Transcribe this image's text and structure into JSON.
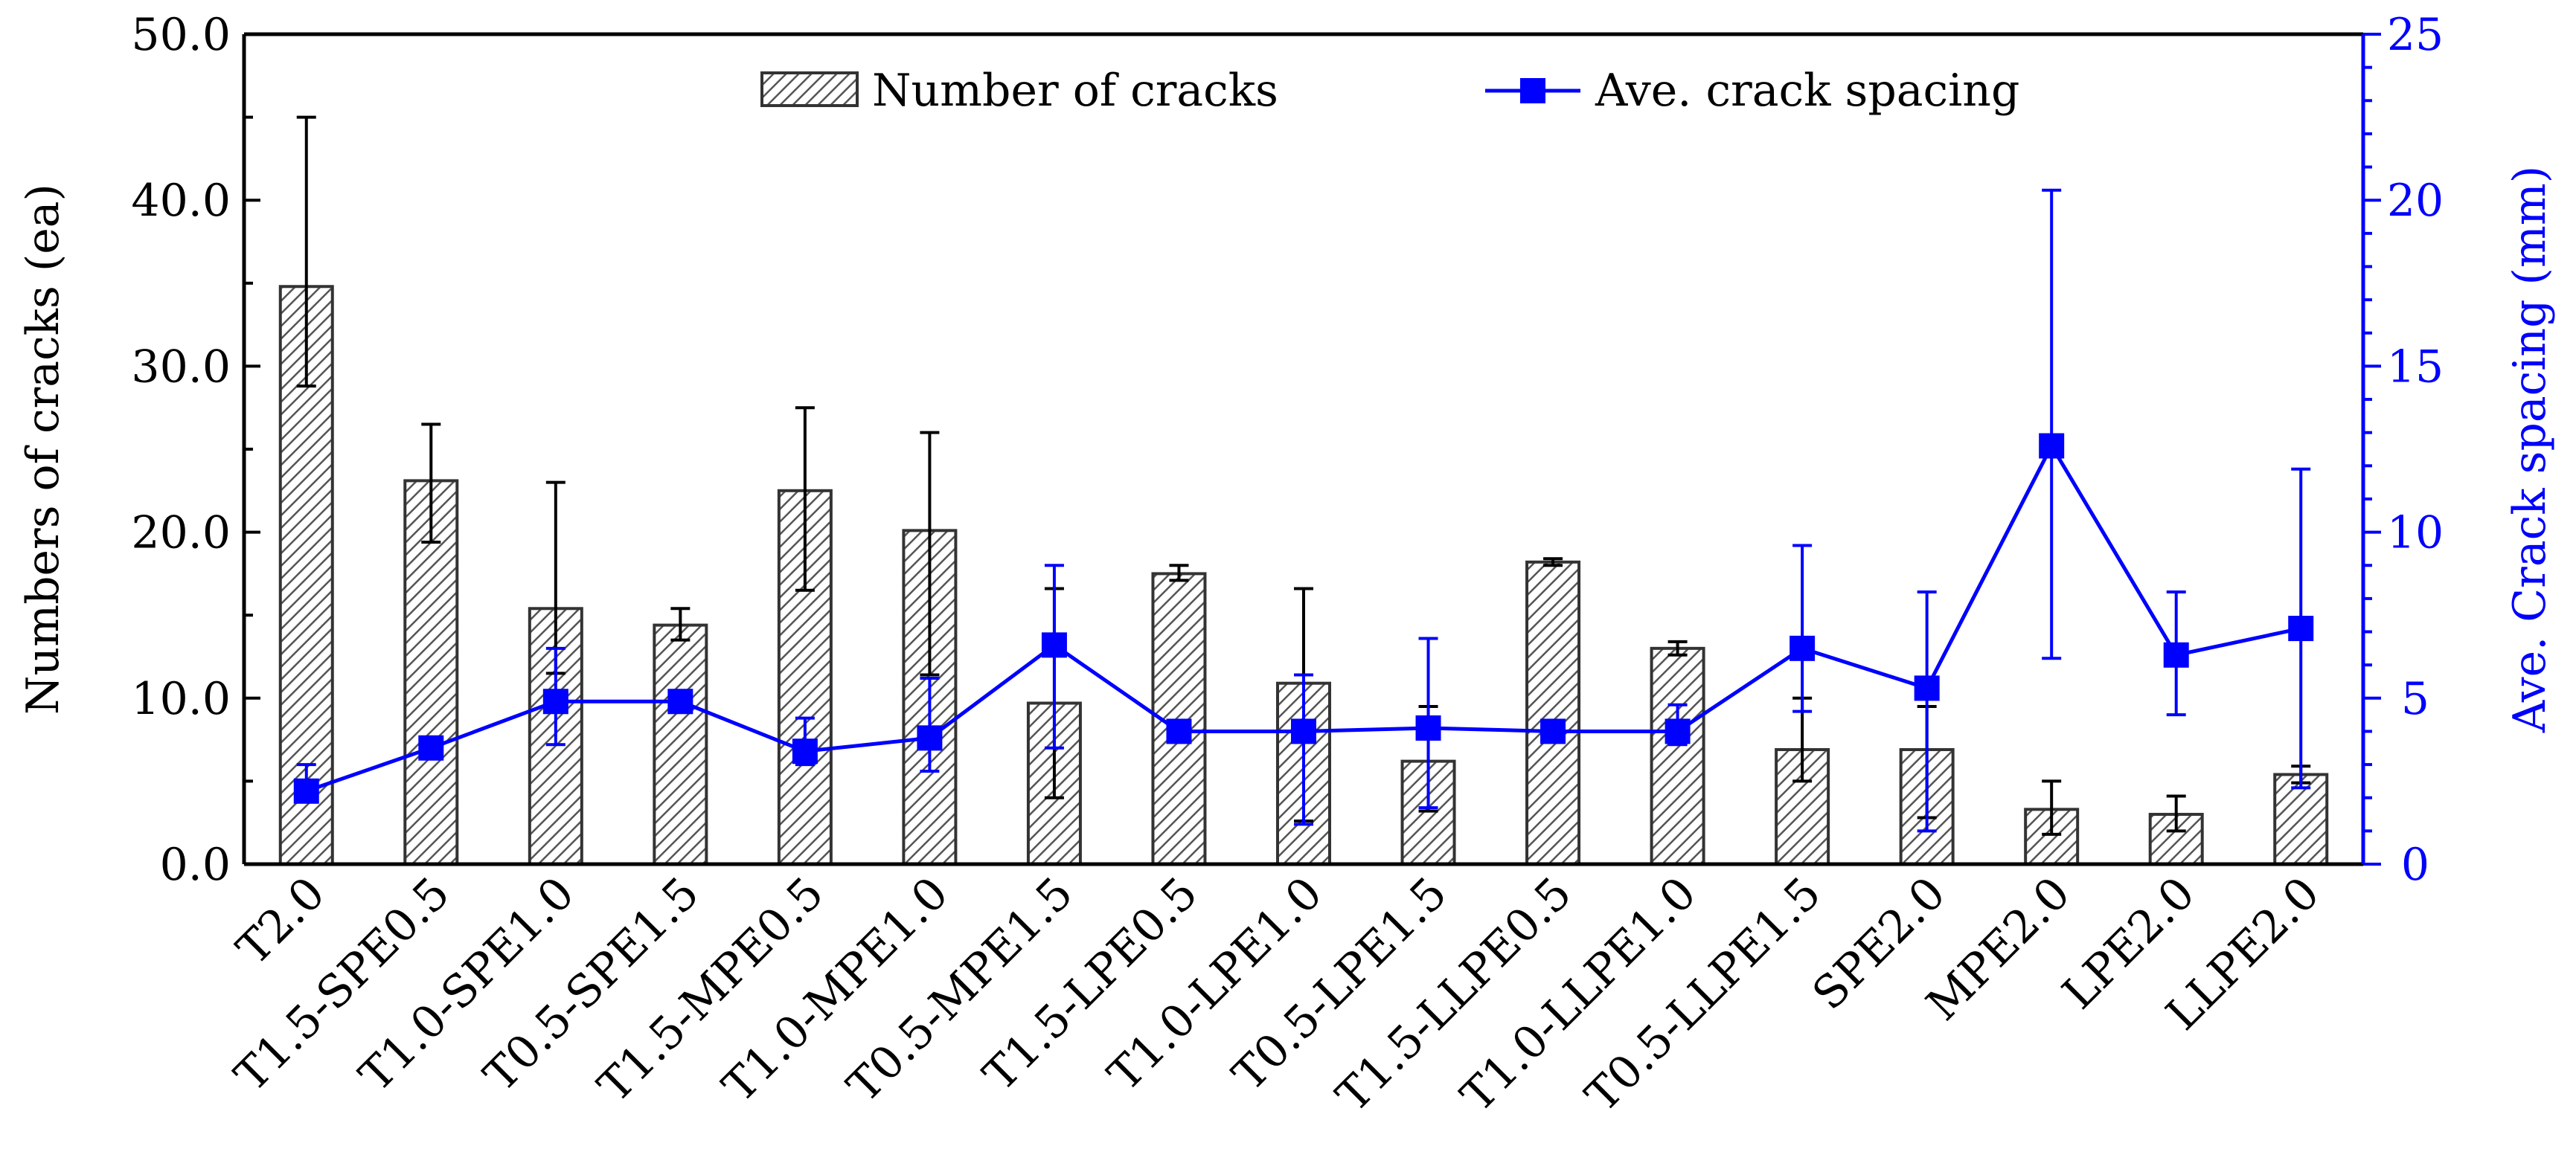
{
  "chart_data": {
    "type": "bar",
    "categories": [
      "T2.0",
      "T1.5-SPE0.5",
      "T1.0-SPE1.0",
      "T0.5-SPE1.5",
      "T1.5-MPE0.5",
      "T1.0-MPE1.0",
      "T0.5-MPE1.5",
      "T1.5-LPE0.5",
      "T1.0-LPE1.0",
      "T0.5-LPE1.5",
      "T1.5-LLPE0.5",
      "T1.0-LLPE1.0",
      "T0.5-LLPE1.5",
      "SPE2.0",
      "MPE2.0",
      "LPE2.0",
      "LLPE2.0"
    ],
    "series": [
      {
        "name": "Number of cracks",
        "type": "bar",
        "axis": "left",
        "values": [
          34.8,
          23.1,
          15.4,
          14.4,
          22.5,
          20.1,
          9.7,
          17.5,
          10.9,
          6.2,
          18.2,
          13.0,
          6.9,
          6.9,
          3.3,
          3.0,
          5.4
        ],
        "err_low": [
          28.8,
          19.4,
          11.5,
          13.5,
          16.5,
          11.4,
          4.0,
          17.1,
          2.6,
          3.2,
          18.0,
          12.6,
          5.0,
          2.8,
          1.8,
          2.0,
          4.9
        ],
        "err_high": [
          45.0,
          26.5,
          23.0,
          15.4,
          27.5,
          26.0,
          16.6,
          18.0,
          16.6,
          9.5,
          18.4,
          13.4,
          10.0,
          9.5,
          5.0,
          4.1,
          5.9
        ]
      },
      {
        "name": "Ave. crack spacing",
        "type": "line",
        "axis": "right",
        "color": "#0000ff",
        "values": [
          2.2,
          3.5,
          4.9,
          4.9,
          3.4,
          3.8,
          6.6,
          4.0,
          4.0,
          4.1,
          4.0,
          4.0,
          6.5,
          5.3,
          12.6,
          6.3,
          7.1
        ],
        "err_low": [
          2.2,
          3.5,
          3.6,
          4.9,
          3.0,
          2.8,
          3.5,
          4.0,
          1.2,
          1.7,
          4.0,
          3.6,
          4.6,
          1.0,
          6.2,
          4.5,
          2.3
        ],
        "err_high": [
          3.0,
          3.5,
          6.5,
          4.9,
          4.4,
          5.6,
          9.0,
          4.0,
          5.7,
          6.8,
          4.0,
          4.8,
          9.6,
          8.2,
          20.3,
          8.2,
          11.9
        ]
      }
    ],
    "y_left": {
      "label": "Numbers of cracks (ea)",
      "ylim": [
        0,
        50
      ],
      "ticks": [
        "0.0",
        "10.0",
        "20.0",
        "30.0",
        "40.0",
        "50.0"
      ]
    },
    "y_right": {
      "label": "Ave. Crack spacing (mm)",
      "ylim": [
        0,
        25
      ],
      "ticks": [
        "0",
        "5",
        "10",
        "15",
        "20",
        "25"
      ],
      "color": "#0000ff"
    },
    "legend": {
      "position": "top-center",
      "bar_label": "Number of cracks",
      "line_label": "Ave. crack spacing"
    },
    "grid": false
  }
}
